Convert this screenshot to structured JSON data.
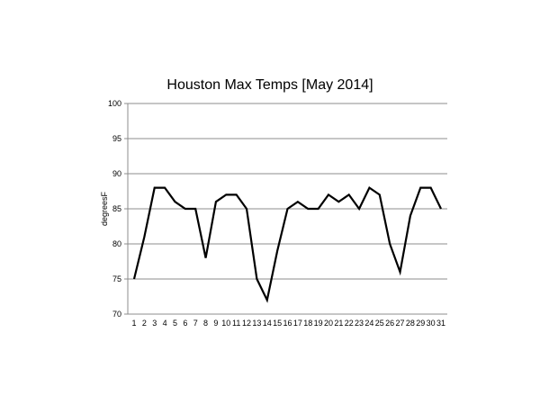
{
  "chart_data": {
    "type": "line",
    "title": "Houston Max Temps [May 2014]",
    "xlabel": "",
    "ylabel": "degreesF",
    "ylim": [
      70,
      100
    ],
    "yticks": [
      70,
      75,
      80,
      85,
      90,
      95,
      100
    ],
    "grid": true,
    "legend": "none",
    "x": [
      "1",
      "2",
      "3",
      "4",
      "5",
      "6",
      "7",
      "8",
      "9",
      "10",
      "11",
      "12",
      "13",
      "14",
      "15",
      "16",
      "17",
      "18",
      "19",
      "20",
      "21",
      "22",
      "23",
      "24",
      "25",
      "26",
      "27",
      "28",
      "29",
      "30",
      "31"
    ],
    "series": [
      {
        "values": [
          75,
          81,
          88,
          88,
          86,
          85,
          85,
          78,
          86,
          87,
          87,
          85,
          75,
          72,
          79,
          85,
          86,
          85,
          85,
          87,
          86,
          87,
          85,
          88,
          87,
          80,
          76,
          84,
          88,
          88,
          85
        ],
        "color": "#000000"
      }
    ]
  }
}
